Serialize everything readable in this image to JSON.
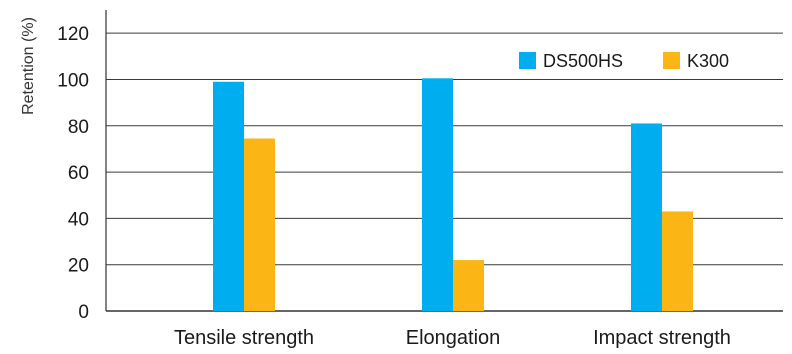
{
  "chart_data": {
    "type": "bar",
    "categories": [
      "Tensile strength",
      "Elongation",
      "Impact strength"
    ],
    "series": [
      {
        "name": "DS500HS",
        "values": [
          99,
          100.5,
          81
        ],
        "color": "#00aeef"
      },
      {
        "name": "K300",
        "values": [
          74.5,
          22,
          43
        ],
        "color": "#fbb616"
      }
    ],
    "title": "",
    "xlabel": "",
    "ylabel": "Retention (%)",
    "ylim": [
      0,
      130
    ],
    "yticks": [
      0,
      20,
      40,
      60,
      80,
      100,
      120
    ],
    "grid": "horizontal",
    "legend_position": "top-right"
  }
}
